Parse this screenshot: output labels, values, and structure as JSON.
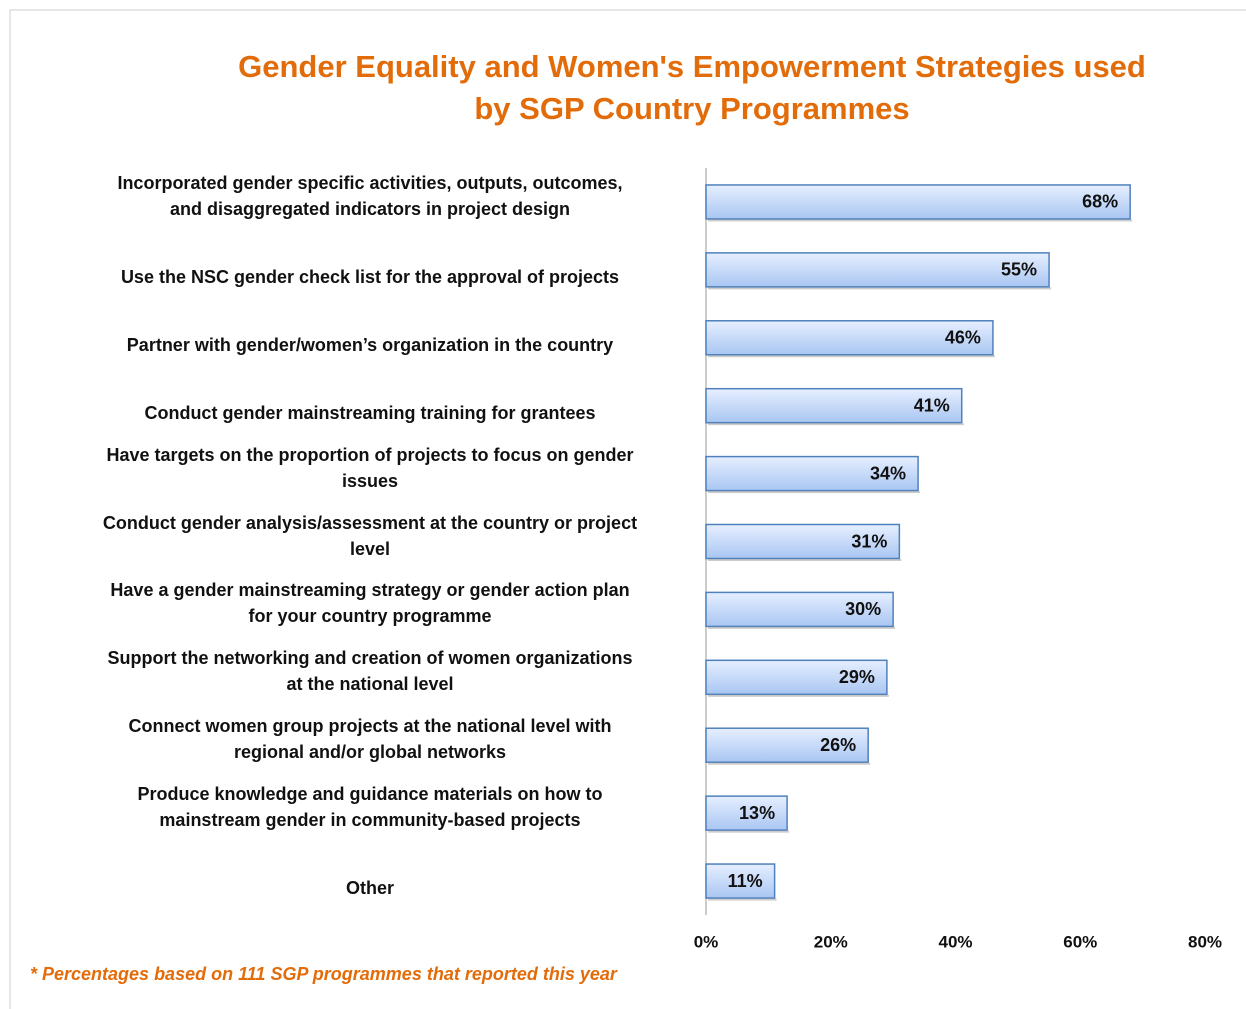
{
  "chart_data": {
    "type": "bar",
    "orientation": "horizontal",
    "title": "Gender Equality and Women's Empowerment Strategies used\nby SGP Country Programmes",
    "categories": [
      "Incorporated gender specific activities, outputs, outcomes,\nand disaggregated indicators in project design",
      "Use the NSC gender check list for the approval of projects",
      "Partner with gender/women’s organization in the country",
      "Conduct gender mainstreaming training for grantees",
      "Have targets on the proportion of projects to focus on gender\nissues",
      "Conduct gender analysis/assessment at the country or project\nlevel",
      "Have a gender mainstreaming strategy or gender action plan\nfor your country programme",
      "Support the networking and creation of women organizations\nat the national level",
      "Connect women group projects at the national level with\nregional and/or global networks",
      "Produce knowledge and guidance materials on how to\nmainstream gender in community-based projects",
      "Other"
    ],
    "values": [
      68,
      55,
      46,
      41,
      34,
      31,
      30,
      29,
      26,
      13,
      11
    ],
    "value_labels": [
      "68%",
      "55%",
      "46%",
      "41%",
      "34%",
      "31%",
      "30%",
      "29%",
      "26%",
      "13%",
      "11%"
    ],
    "color": "#c6d9f8",
    "xlim": [
      0,
      80
    ],
    "xticks": [
      {
        "value": 0,
        "label": "0%"
      },
      {
        "value": 20,
        "label": "20%"
      },
      {
        "value": 40,
        "label": "40%"
      },
      {
        "value": 60,
        "label": "60%"
      },
      {
        "value": 80,
        "label": "80%"
      }
    ],
    "grid": false,
    "footnote": "* Percentages based on 111 SGP programmes that reported this year"
  }
}
